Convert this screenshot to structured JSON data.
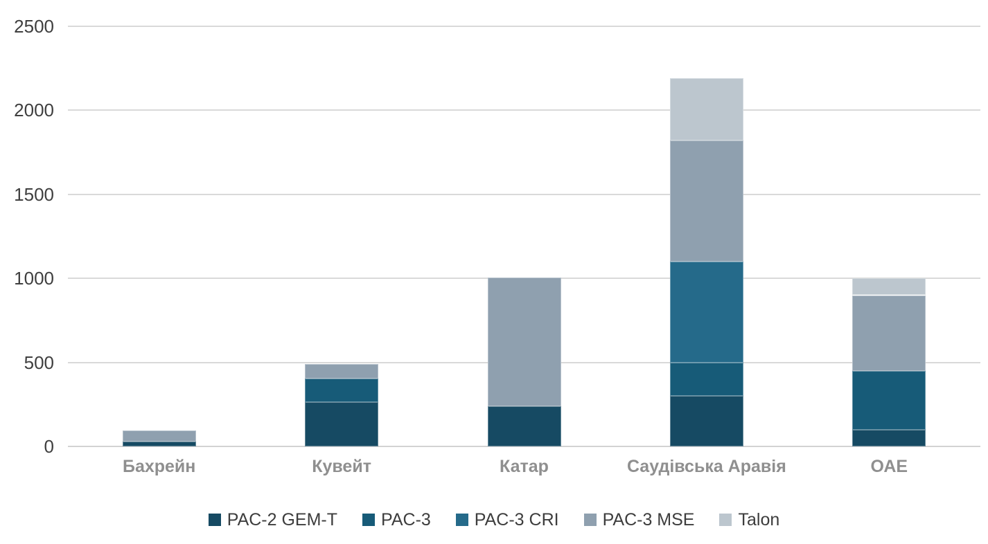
{
  "chart_data": {
    "type": "bar",
    "stacked": true,
    "categories": [
      "Бахрейн",
      "Кувейт",
      "Катар",
      "Саудівська Аравія",
      "ОАЕ"
    ],
    "series": [
      {
        "name": "PAC-2 GEM-T",
        "color": "#164A63",
        "values": [
          30,
          265,
          240,
          300,
          100
        ]
      },
      {
        "name": "PAC-3",
        "color": "#175B78",
        "values": [
          0,
          140,
          0,
          200,
          350
        ]
      },
      {
        "name": "PAC-3 CRI",
        "color": "#256A8A",
        "values": [
          0,
          0,
          0,
          600,
          0
        ]
      },
      {
        "name": "PAC-3 MSE",
        "color": "#8FA0AF",
        "values": [
          65,
          85,
          765,
          720,
          450
        ]
      },
      {
        "name": "Talon",
        "color": "#BCC6CE",
        "values": [
          0,
          0,
          0,
          370,
          100
        ]
      }
    ],
    "totals": [
      95,
      490,
      1005,
      2190,
      1000
    ],
    "ylim": [
      0,
      2500
    ],
    "yticks": [
      0,
      500,
      1000,
      1500,
      2000,
      2500
    ],
    "xlabel": "",
    "ylabel": "",
    "grid": true,
    "legend_position": "bottom"
  },
  "colors": {
    "background": "#ffffff",
    "gridline": "#d9d9d9",
    "axis_tick_text": "#3f3f3f",
    "category_label_text": "#8f8f8f",
    "legend_text": "#3d3d3d"
  }
}
